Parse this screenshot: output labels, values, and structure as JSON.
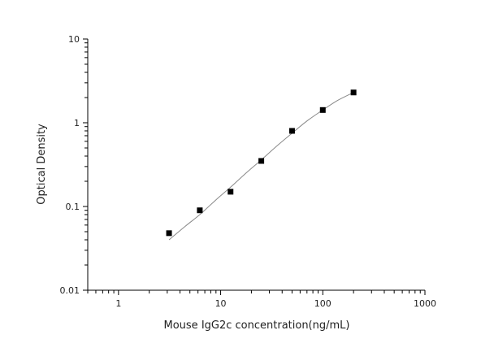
{
  "chart_data": {
    "type": "scatter",
    "title": "",
    "xlabel": "Mouse IgG2c concentration(ng/mL)",
    "ylabel": "Optical Density",
    "xscale": "log",
    "yscale": "log",
    "xlim": [
      0.5,
      1000
    ],
    "ylim": [
      0.01,
      10
    ],
    "xticks": [
      1,
      10,
      100,
      1000
    ],
    "xtick_labels": [
      "1",
      "10",
      "100",
      "1000"
    ],
    "yticks": [
      0.01,
      0.1,
      1,
      10
    ],
    "ytick_labels": [
      "0.01",
      "0.1",
      "1",
      "10"
    ],
    "grid": false,
    "legend": "none",
    "series": [
      {
        "marker": "square",
        "color": "#000000",
        "x": [
          3.125,
          6.25,
          12.5,
          25,
          50,
          100,
          200
        ],
        "y": [
          0.048,
          0.09,
          0.15,
          0.35,
          0.8,
          1.42,
          2.3
        ]
      }
    ],
    "fit_curve": {
      "color": "#888888",
      "x": [
        3.125,
        4.5,
        6.25,
        9,
        12.5,
        18,
        25,
        35,
        50,
        70,
        100,
        140,
        200
      ],
      "y": [
        0.04,
        0.058,
        0.08,
        0.12,
        0.17,
        0.255,
        0.36,
        0.52,
        0.75,
        1.05,
        1.42,
        1.85,
        2.3
      ]
    }
  }
}
